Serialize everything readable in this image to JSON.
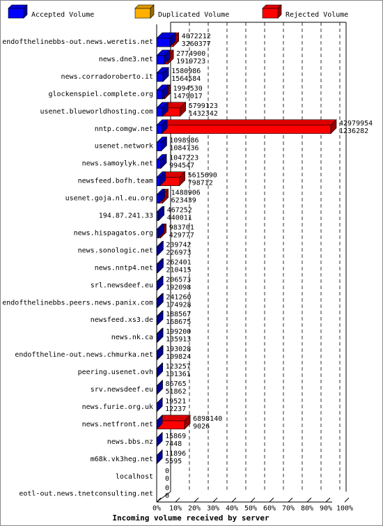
{
  "chart_data": {
    "type": "bar",
    "title": "Incoming volume received by server",
    "legend": {
      "placement": "top",
      "items": [
        {
          "name": "Accepted Volume",
          "color": "#0000ff"
        },
        {
          "name": "Duplicated Volume",
          "color": "#ffb000"
        },
        {
          "name": "Rejected Volume",
          "color": "#ff0000"
        }
      ]
    },
    "xaxis": {
      "ticks": [
        "0%",
        "10%",
        "20%",
        "30%",
        "40%",
        "50%",
        "60%",
        "70%",
        "80%",
        "90%",
        "100%"
      ],
      "range": [
        0,
        100
      ]
    },
    "grid": true,
    "categories": [
      "endofthelinebbs-out.news.weretis.net",
      "news.dne3.net",
      "news.corradoroberto.it",
      "glockenspiel.complete.org",
      "usenet.blueworldhosting.com",
      "nntp.comgw.net",
      "usenet.network",
      "news.samoylyk.net",
      "newsfeed.bofh.team",
      "usenet.goja.nl.eu.org",
      "194.87.241.33",
      "news.hispagatos.org",
      "news.sonologic.net",
      "news.nntp4.net",
      "srl.newsdeef.eu",
      "endofthelinebbs.peers.news.panix.com",
      "newsfeed.xs3.de",
      "news.nk.ca",
      "endoftheline-out.news.chmurka.net",
      "peering.usenet.ovh",
      "srv.newsdeef.eu",
      "news.furie.org.uk",
      "news.netfront.net",
      "news.bbs.nz",
      "m68k.vk3heg.net",
      "localhost",
      "eotl-out.news.tnetconsulting.net"
    ],
    "totals": [
      4072212,
      2774900,
      1580986,
      1994530,
      5799123,
      42979954,
      1098986,
      1047223,
      5615690,
      1488906,
      467252,
      983701,
      239742,
      262401,
      206573,
      241260,
      188567,
      199200,
      193028,
      123257,
      86765,
      19521,
      6898140,
      15869,
      11896,
      0,
      0
    ],
    "accepted": [
      3260377,
      1919723,
      1564584,
      1479017,
      1432342,
      1236282,
      1084736,
      994547,
      798712,
      623439,
      440011,
      429777,
      226973,
      210415,
      192098,
      174928,
      168675,
      135913,
      109824,
      101361,
      51862,
      12237,
      9026,
      7448,
      5595,
      0,
      0
    ]
  }
}
